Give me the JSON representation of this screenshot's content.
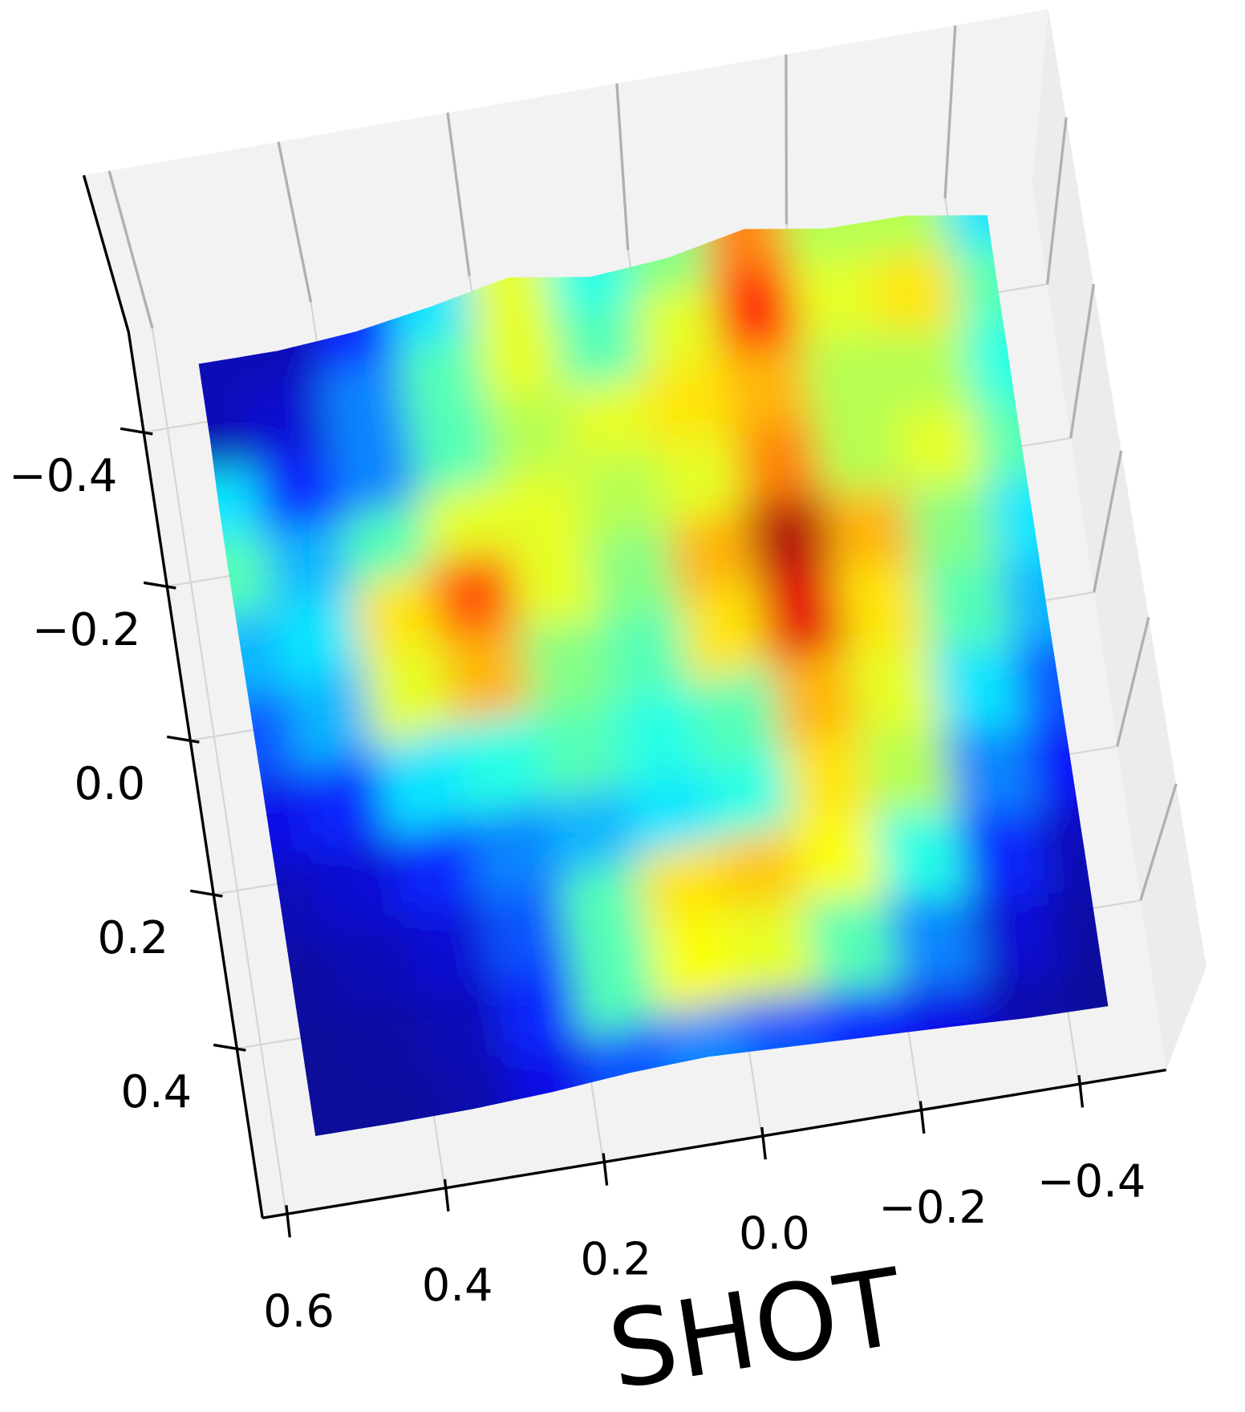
{
  "chart_data": {
    "type": "surface",
    "colormap": "jet",
    "xlabel": "SHOT",
    "x": [
      0.5,
      0.4,
      0.3,
      0.2,
      0.1,
      0.0,
      -0.1,
      -0.2,
      -0.3,
      -0.4,
      -0.5
    ],
    "y": [
      -0.5,
      -0.4,
      -0.3,
      -0.2,
      -0.1,
      0.0,
      0.1,
      0.2,
      0.3,
      0.4,
      0.5
    ],
    "z": [
      [
        0.05,
        0.05,
        0.15,
        0.35,
        0.6,
        0.4,
        0.5,
        0.75,
        0.55,
        0.55,
        0.35
      ],
      [
        0.05,
        0.08,
        0.25,
        0.45,
        0.6,
        0.45,
        0.6,
        0.85,
        0.6,
        0.65,
        0.45
      ],
      [
        0.35,
        0.15,
        0.25,
        0.45,
        0.55,
        0.6,
        0.65,
        0.7,
        0.55,
        0.55,
        0.4
      ],
      [
        0.45,
        0.3,
        0.45,
        0.6,
        0.6,
        0.55,
        0.6,
        0.75,
        0.55,
        0.6,
        0.45
      ],
      [
        0.3,
        0.35,
        0.65,
        0.8,
        0.6,
        0.5,
        0.7,
        0.95,
        0.7,
        0.5,
        0.35
      ],
      [
        0.2,
        0.3,
        0.6,
        0.7,
        0.5,
        0.45,
        0.65,
        0.9,
        0.65,
        0.45,
        0.3
      ],
      [
        0.1,
        0.15,
        0.35,
        0.4,
        0.45,
        0.4,
        0.45,
        0.7,
        0.6,
        0.35,
        0.2
      ],
      [
        0.05,
        0.08,
        0.15,
        0.25,
        0.3,
        0.35,
        0.4,
        0.65,
        0.55,
        0.25,
        0.12
      ],
      [
        0.03,
        0.05,
        0.08,
        0.2,
        0.45,
        0.65,
        0.68,
        0.62,
        0.4,
        0.15,
        0.05
      ],
      [
        0.02,
        0.03,
        0.05,
        0.15,
        0.45,
        0.62,
        0.6,
        0.45,
        0.25,
        0.08,
        0.03
      ],
      [
        0.02,
        0.02,
        0.04,
        0.1,
        0.2,
        0.25,
        0.2,
        0.15,
        0.1,
        0.04,
        0.02
      ]
    ],
    "xlim": [
      0.63,
      -0.51
    ],
    "ylim": [
      -0.53,
      0.62
    ],
    "zlim": [
      0,
      1
    ],
    "xticks": [
      0.6,
      0.4,
      0.2,
      {
        "value": 0,
        "label": "0.0"
      },
      {
        "value": -0.2,
        "label": "−0.2"
      },
      {
        "value": -0.4,
        "label": "−0.4"
      }
    ],
    "yticks": [
      {
        "value": -0.4,
        "label": "−0.4"
      },
      {
        "value": -0.2,
        "label": "−0.2"
      },
      {
        "value": 0,
        "label": "0.0"
      },
      0.2,
      0.4
    ],
    "grid": true
  }
}
